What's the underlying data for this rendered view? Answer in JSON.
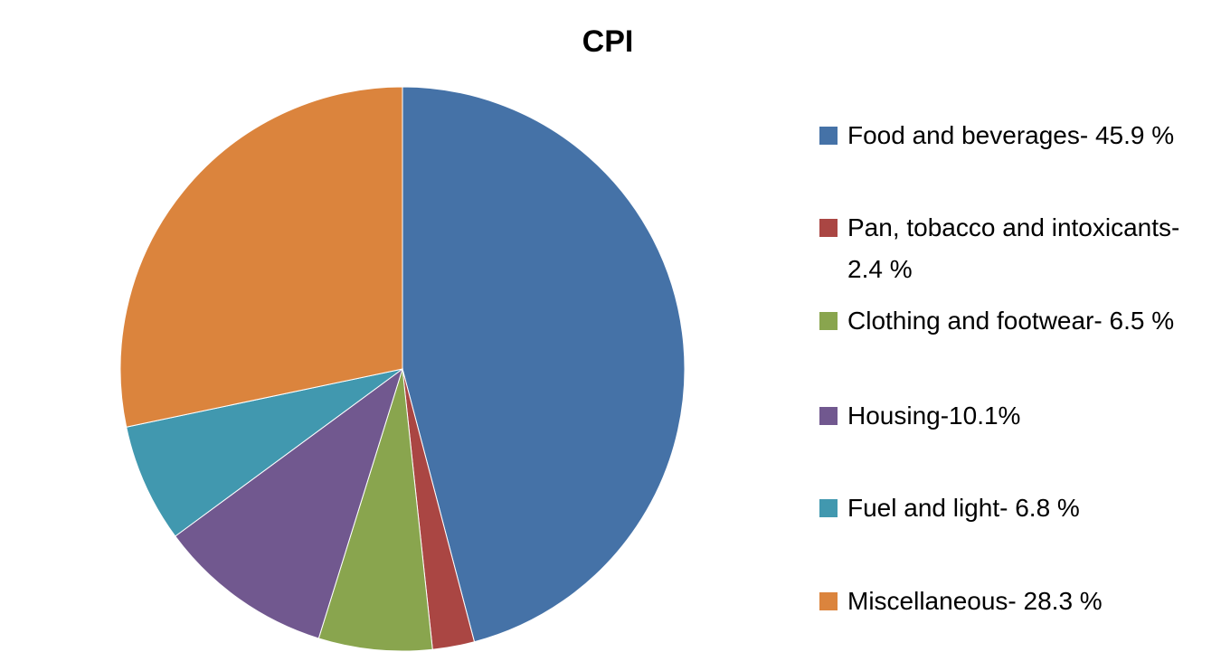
{
  "chart_data": {
    "type": "pie",
    "title": "CPI",
    "categories": [
      "Food and beverages- 45.9 %",
      "Pan, tobacco and intoxicants-2.4 %",
      "Clothing and footwear- 6.5 %",
      "Housing-10.1%",
      "Fuel and light- 6.8 %",
      "Miscellaneous- 28.3 %"
    ],
    "values": [
      45.9,
      2.4,
      6.5,
      10.1,
      6.8,
      28.3
    ],
    "colors": [
      "#4572a7",
      "#aa4643",
      "#89a54e",
      "#71588f",
      "#4198af",
      "#db843d"
    ]
  }
}
